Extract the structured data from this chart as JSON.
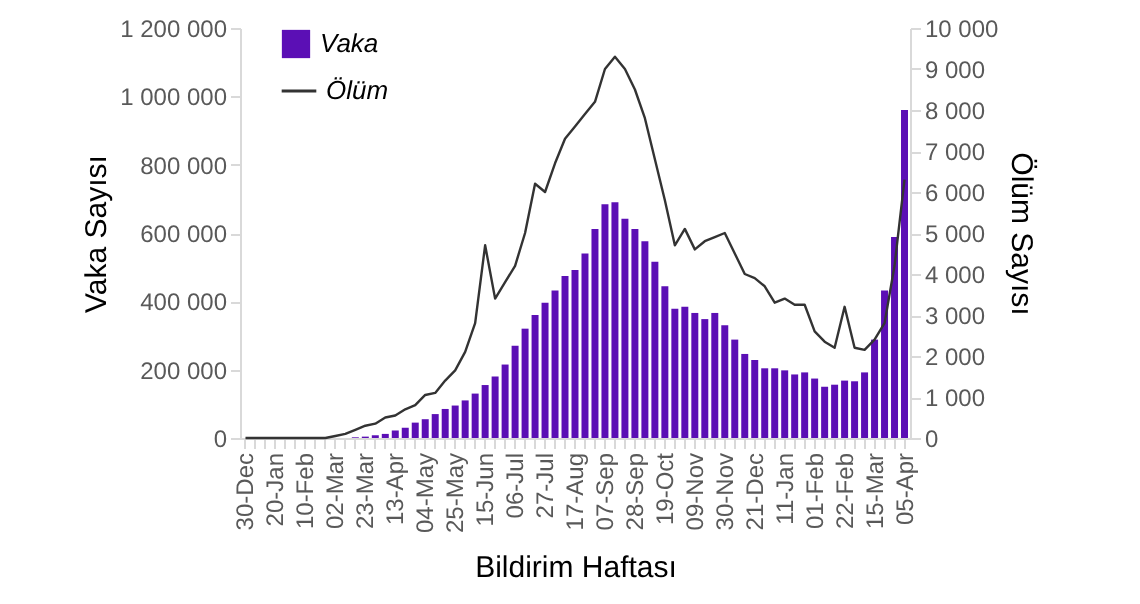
{
  "chart_data": {
    "type": "bar",
    "xlabel": "Bildirim Haftası",
    "ylabel": "Vaka Sayısı",
    "y2label": "Ölüm Sayısı",
    "categories": [
      "30-Dec",
      null,
      null,
      "20-Jan",
      null,
      null,
      "10-Feb",
      null,
      null,
      "02-Mar",
      null,
      null,
      "23-Mar",
      null,
      null,
      "13-Apr",
      null,
      null,
      "04-May",
      null,
      null,
      "25-May",
      null,
      null,
      "15-Jun",
      null,
      null,
      "06-Jul",
      null,
      null,
      "27-Jul",
      null,
      null,
      "17-Aug",
      null,
      null,
      "07-Sep",
      null,
      null,
      "28-Sep",
      null,
      null,
      "19-Oct",
      null,
      null,
      "09-Nov",
      null,
      null,
      "30-Nov",
      null,
      null,
      "21-Dec",
      null,
      null,
      "11-Jan",
      null,
      null,
      "01-Feb",
      null,
      null,
      "22-Feb",
      null,
      null,
      "15-Mar",
      null,
      null,
      "05-Apr"
    ],
    "series": [
      {
        "name": "Vaka",
        "color": "#5b0fb5",
        "values": [
          0,
          0,
          0,
          0,
          0,
          0,
          0,
          0,
          0,
          0,
          null,
          2000,
          4000,
          8000,
          12000,
          22000,
          30000,
          45000,
          55000,
          70000,
          85000,
          95000,
          110000,
          130000,
          155000,
          180000,
          215000,
          270000,
          320000,
          360000,
          396000,
          432000,
          474000,
          492000,
          540000,
          612000,
          684000,
          690000,
          642000,
          612000,
          576000,
          516000,
          444000,
          378000,
          384000,
          366000,
          348000,
          366000,
          330000,
          288000,
          246000,
          228000,
          204000,
          204000,
          198000,
          186000,
          192000,
          174000,
          150000,
          156000,
          168000,
          166000,
          192000,
          288000,
          432000,
          588000,
          960000
        ]
      },
      {
        "name": "Ölüm",
        "type": "line",
        "axis": "y2",
        "color": "#333333",
        "values": [
          0,
          0,
          0,
          0,
          0,
          0,
          0,
          0,
          0,
          50,
          100,
          200,
          300,
          350,
          500,
          550,
          700,
          800,
          1050,
          1100,
          1400,
          1650,
          2100,
          2800,
          4700,
          3400,
          3800,
          4200,
          5000,
          6200,
          6000,
          6700,
          7300,
          7600,
          7900,
          8200,
          9000,
          9300,
          9000,
          8500,
          7800,
          6800,
          5800,
          4700,
          5100,
          4600,
          4800,
          4900,
          5000,
          4500,
          4000,
          3900,
          3700,
          3300,
          3400,
          3250,
          3250,
          2600,
          2350,
          2200,
          3200,
          2200,
          2150,
          2400,
          2800,
          4200,
          6300
        ]
      }
    ],
    "ylim": [
      0,
      1200000
    ],
    "yticks": [
      0,
      {
        "value": 200000,
        "label": "200 000"
      },
      {
        "value": 400000,
        "label": "400 000"
      },
      {
        "value": 600000,
        "label": "600 000"
      },
      {
        "value": 800000,
        "label": "800 000"
      },
      {
        "value": 1000000,
        "label": "1 000 000"
      },
      {
        "value": 1200000,
        "label": "1 200 000"
      }
    ],
    "y2lim": [
      0,
      10000
    ],
    "y2ticks": [
      0,
      {
        "value": 1000,
        "label": "1 000"
      },
      {
        "value": 2000,
        "label": "2 000"
      },
      {
        "value": 3000,
        "label": "3 000"
      },
      {
        "value": 4000,
        "label": "4 000"
      },
      {
        "value": 5000,
        "label": "5 000"
      },
      {
        "value": 6000,
        "label": "6 000"
      },
      {
        "value": 7000,
        "label": "7 000"
      },
      {
        "value": 8000,
        "label": "8 000"
      },
      {
        "value": 9000,
        "label": "9 000"
      },
      {
        "value": 10000,
        "label": "10 000"
      }
    ],
    "grid": false,
    "legend": "top left"
  }
}
